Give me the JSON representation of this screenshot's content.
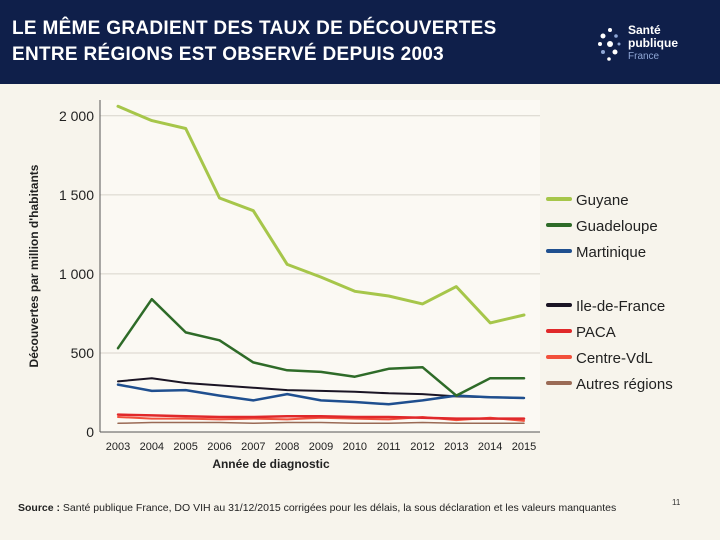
{
  "header": {
    "title_line1": "LE MÊME GRADIENT DES TAUX DE DÉCOUVERTES",
    "title_line2": "ENTRE RÉGIONS EST OBSERVÉ DEPUIS 2003",
    "logo_line1": "Santé",
    "logo_line2": "publique",
    "logo_line3": "France"
  },
  "footer": {
    "source_label": "Source :",
    "source_text": " Santé publique France, DO VIH au 31/12/2015 corrigées pour les délais, la sous déclaration et les valeurs manquantes",
    "page_number": "11"
  },
  "chart_data": {
    "type": "line",
    "title": "",
    "xlabel": "Année de diagnostic",
    "ylabel": "Découvertes par million d'habitants",
    "ylim": [
      0,
      2100
    ],
    "yticks": [
      0,
      500,
      1000,
      1500,
      2000
    ],
    "ytick_labels": [
      "0",
      "500",
      "1 000",
      "1 500",
      "2 000"
    ],
    "grid": "horizontal",
    "legend_position": "right",
    "x": [
      "2003",
      "2004",
      "2005",
      "2006",
      "2007",
      "2008",
      "2009",
      "2010",
      "2011",
      "2012",
      "2013",
      "2014",
      "2015"
    ],
    "series": [
      {
        "name": "Guyane",
        "color": "#a6c64a",
        "width": 3,
        "values": [
          2060,
          1970,
          1920,
          1480,
          1400,
          1060,
          980,
          890,
          860,
          810,
          920,
          690,
          740
        ]
      },
      {
        "name": "Guadeloupe",
        "color": "#2e6b28",
        "width": 2.5,
        "values": [
          530,
          840,
          630,
          580,
          440,
          390,
          380,
          350,
          400,
          410,
          230,
          340,
          340
        ]
      },
      {
        "name": "Martinique",
        "color": "#1f4f8f",
        "width": 2.5,
        "values": [
          300,
          260,
          265,
          230,
          200,
          240,
          200,
          190,
          175,
          200,
          230,
          220,
          215
        ]
      },
      {
        "name": "Ile-de-France",
        "color": "#1a1424",
        "width": 2,
        "values": [
          320,
          340,
          310,
          295,
          280,
          265,
          260,
          255,
          245,
          240,
          225,
          220,
          215
        ]
      },
      {
        "name": "PACA",
        "color": "#e0282a",
        "width": 2.5,
        "values": [
          110,
          105,
          100,
          95,
          95,
          100,
          100,
          95,
          95,
          90,
          85,
          85,
          85
        ]
      },
      {
        "name": "Centre-VdL",
        "color": "#f2503c",
        "width": 2,
        "values": [
          95,
          85,
          85,
          80,
          85,
          80,
          90,
          85,
          80,
          95,
          75,
          90,
          70
        ]
      },
      {
        "name": "Autres régions",
        "color": "#9a6a55",
        "width": 1.5,
        "values": [
          55,
          60,
          60,
          60,
          55,
          60,
          60,
          55,
          55,
          60,
          55,
          55,
          55
        ]
      }
    ],
    "legend_groups": [
      [
        "Guyane",
        "Guadeloupe",
        "Martinique"
      ],
      [
        "Ile-de-France",
        "PACA",
        "Centre-VdL",
        "Autres régions"
      ]
    ]
  }
}
